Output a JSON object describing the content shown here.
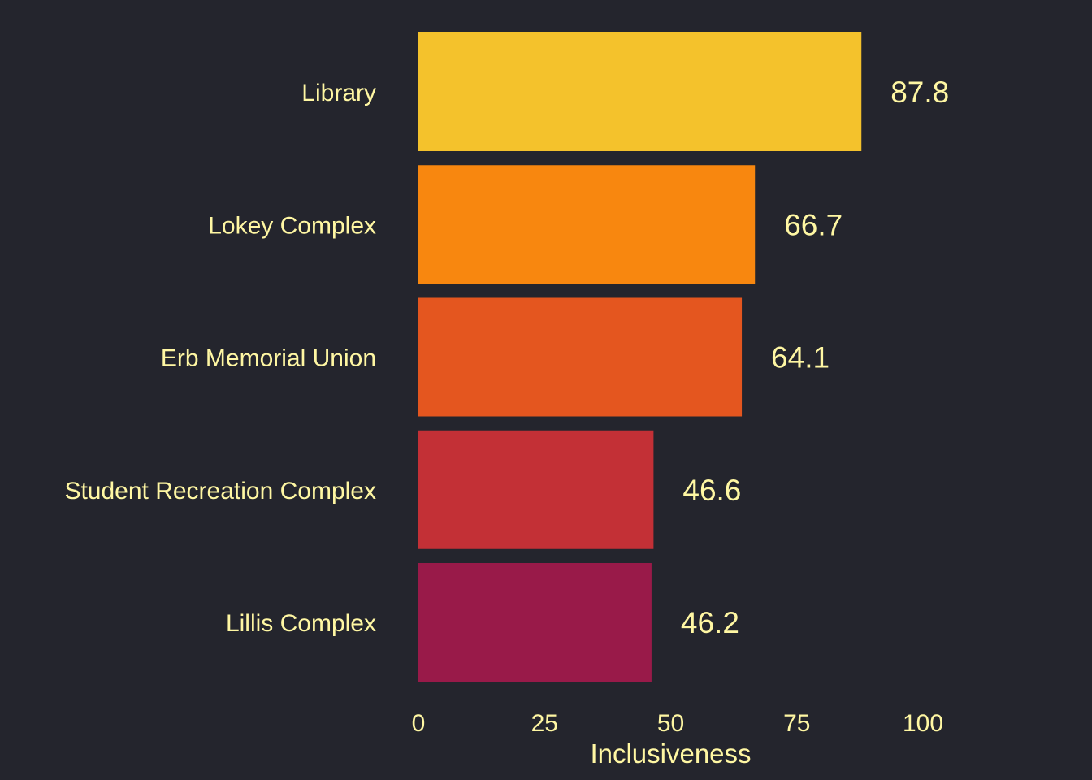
{
  "chart_data": {
    "type": "bar",
    "orientation": "horizontal",
    "title": "",
    "xlabel": "Inclusiveness",
    "ylabel": "",
    "xlim": [
      0,
      100
    ],
    "xticks": [
      0,
      25,
      50,
      75,
      100
    ],
    "grid": false,
    "legend": "none",
    "categories": [
      "Library",
      "Lokey Complex",
      "Erb Memorial Union",
      "Student Recreation Complex",
      "Lillis Complex"
    ],
    "values": [
      87.8,
      66.7,
      64.1,
      46.6,
      46.2
    ],
    "value_labels": [
      "87.8",
      "66.7",
      "64.1",
      "46.6",
      "46.2"
    ],
    "colors": [
      "#f4c22c",
      "#f8870f",
      "#e4561f",
      "#c33036",
      "#991a49"
    ]
  },
  "theme": {
    "background": "#24252d",
    "text_color": "#fff7a3"
  }
}
